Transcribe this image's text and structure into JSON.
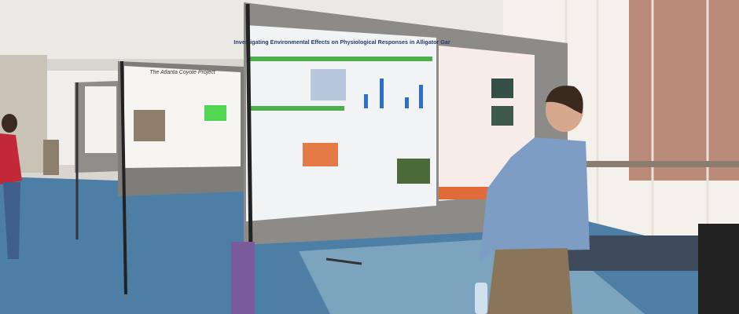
{
  "scene": {
    "posters": [
      {
        "title": "Investigating Environmental Effects on Physiological Responses in Alligator Gar"
      },
      {
        "title": "The Atlanta Coyote Project"
      }
    ]
  }
}
